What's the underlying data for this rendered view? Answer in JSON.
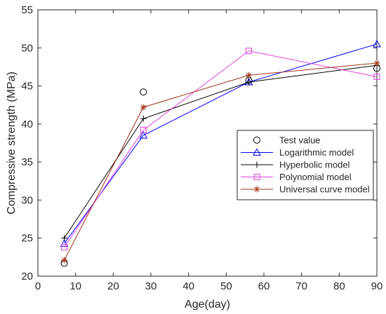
{
  "chart_data": {
    "type": "line",
    "xlabel": "Age(day)",
    "ylabel": "Compressive strength (MPa)",
    "xlim": [
      0,
      90
    ],
    "ylim": [
      20,
      55
    ],
    "xticks": [
      0,
      10,
      20,
      30,
      40,
      50,
      60,
      70,
      80,
      90
    ],
    "yticks": [
      20,
      25,
      30,
      35,
      40,
      45,
      50,
      55
    ],
    "xtick_labels": [
      "0",
      "10",
      "20",
      "30",
      "40",
      "50",
      "60",
      "70",
      "80",
      "90"
    ],
    "ytick_labels": [
      "20",
      "25",
      "30",
      "35",
      "40",
      "45",
      "50",
      "55"
    ],
    "grid": false,
    "legend_position": "right-center",
    "x": [
      7,
      28,
      56,
      90
    ],
    "series": [
      {
        "name": "Test value",
        "values": [
          21.7,
          44.2,
          45.7,
          47.3
        ],
        "color": "#000000",
        "marker": "circle",
        "line": false
      },
      {
        "name": "Logarithmic model",
        "values": [
          24.3,
          38.5,
          45.5,
          50.5
        ],
        "color": "#0000ff",
        "marker": "triangle",
        "line": true
      },
      {
        "name": "Hyperbolic model",
        "values": [
          25.0,
          40.7,
          45.5,
          47.7
        ],
        "color": "#000000",
        "marker": "plus",
        "line": true
      },
      {
        "name": "Polynomial model",
        "values": [
          23.8,
          39.2,
          49.6,
          46.2
        ],
        "color": "#e040e0",
        "marker": "square",
        "line": true
      },
      {
        "name": "Universal curve model",
        "values": [
          22.1,
          42.2,
          46.4,
          48.0
        ],
        "color": "#a0311a",
        "marker": "asterisk",
        "line": true
      }
    ]
  }
}
